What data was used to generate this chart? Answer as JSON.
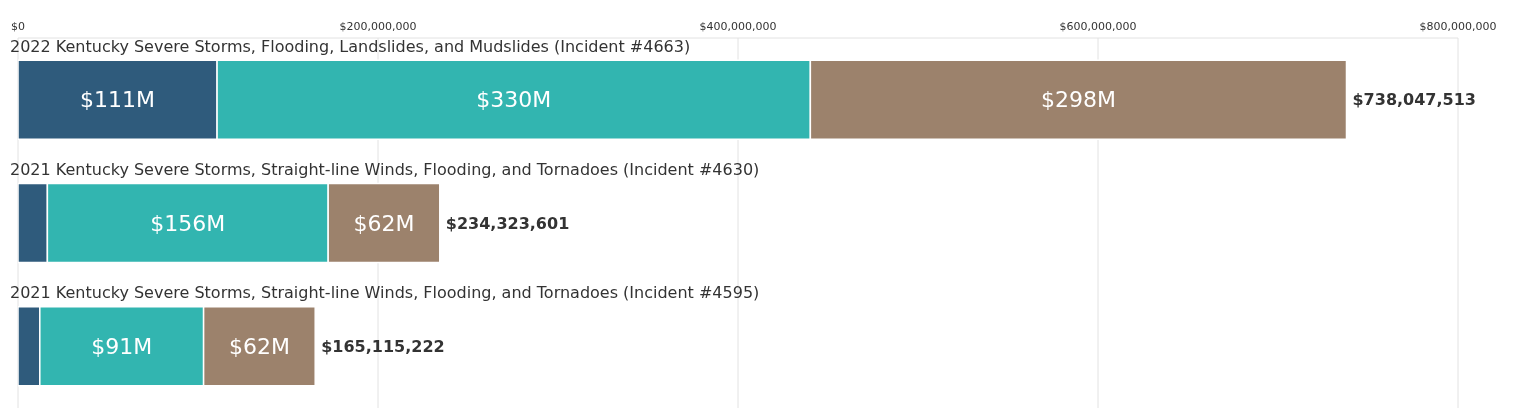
{
  "chart_data": {
    "type": "bar",
    "orientation": "horizontal",
    "stacked": true,
    "categories": [
      "2022 Kentucky Severe Storms, Flooding, Landslides, and Mudslides (Incident #4663)",
      "2021 Kentucky Severe Storms, Straight-line Winds, Flooding, and Tornadoes (Incident #4630)",
      "2021 Kentucky Severe Storms, Straight-line Winds, Flooding, and Tornadoes (Incident #4595)"
    ],
    "series": [
      {
        "color": "#2f5b7c",
        "values": [
          110600000,
          16323601,
          12115222
        ],
        "value_labels": [
          "$111M",
          null,
          null
        ]
      },
      {
        "color": "#32b5b0",
        "values": [
          329600000,
          156000000,
          91000000
        ],
        "value_labels": [
          "$330M",
          "$156M",
          "$91M"
        ]
      },
      {
        "color": "#9c826c",
        "values": [
          297847513,
          62000000,
          62000000
        ],
        "value_labels": [
          "$298M",
          "$62M",
          "$62M"
        ]
      }
    ],
    "totals": [
      "$738,047,513",
      "$234,323,601",
      "$165,115,222"
    ],
    "xlim": [
      0,
      800000000
    ],
    "xticks": [
      {
        "value": 0,
        "label": "$0"
      },
      {
        "value": 200000000,
        "label": "$200,000,000"
      },
      {
        "value": 400000000,
        "label": "$400,000,000"
      },
      {
        "value": 600000000,
        "label": "$600,000,000"
      },
      {
        "value": 800000000,
        "label": "$800,000,000"
      }
    ],
    "grid": "x"
  }
}
